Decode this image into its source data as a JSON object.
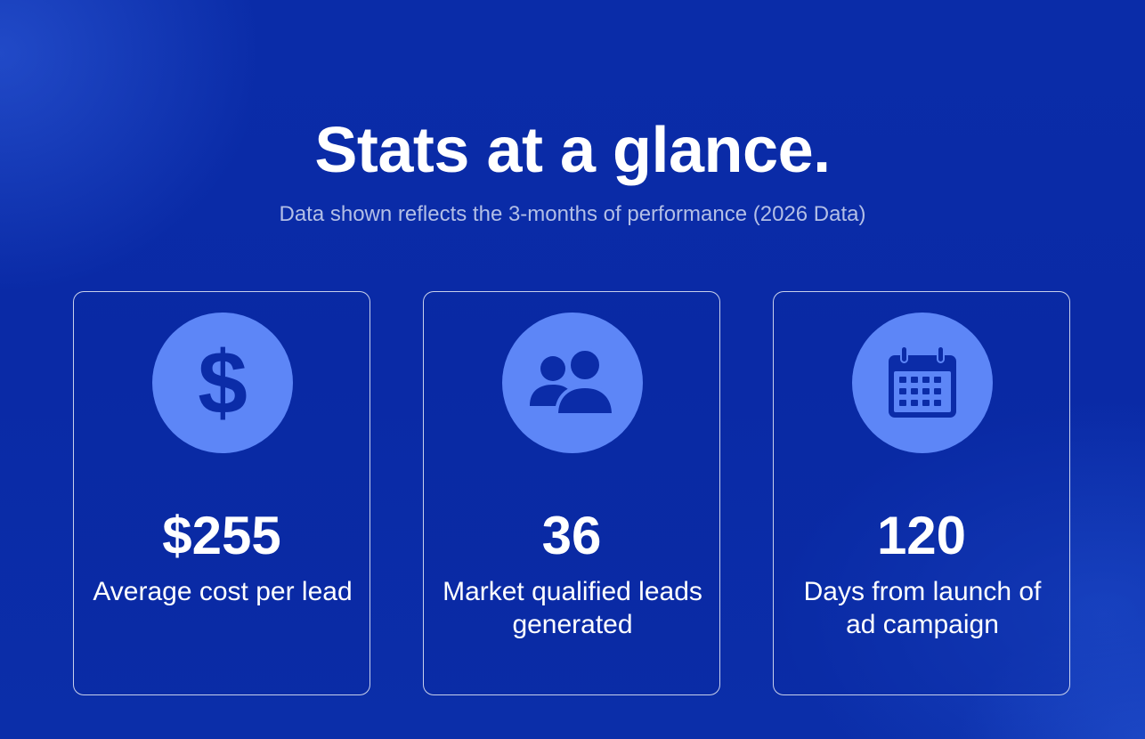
{
  "header": {
    "title": "Stats at a glance.",
    "subtitle": "Data shown reflects the 3-months of performance (2026 Data)"
  },
  "colors": {
    "background": "#0a2ca8",
    "icon_circle": "#5d86f7",
    "icon_glyph": "#0b2ca8",
    "subtitle": "#b3bfe6"
  },
  "stats": [
    {
      "icon": "dollar-icon",
      "value": "$255",
      "label": "Average cost per lead"
    },
    {
      "icon": "users-icon",
      "value": "36",
      "label": "Market qualified leads generated"
    },
    {
      "icon": "calendar-icon",
      "value": "120",
      "label": "Days from launch of ad campaign"
    }
  ]
}
